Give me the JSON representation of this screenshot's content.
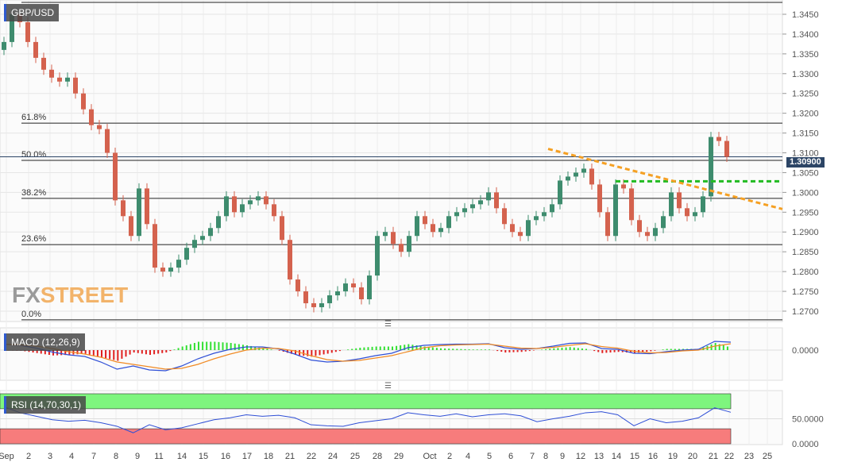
{
  "symbol": "GBP/USD",
  "current_price_label": "1.30900",
  "logo": {
    "fx": "FX",
    "street": "STREET"
  },
  "colors": {
    "up": "#3e8c6e",
    "down": "#d4624e",
    "macd": "#2f4fd6",
    "signal": "#f08a24",
    "hist_up": "#33e033",
    "hist_down": "#e02020",
    "rsi": "#2f4fd6",
    "overbought": "#7ef57e",
    "oversold": "#f77c7c",
    "trendline": "#f5a023",
    "resistance": "#22bb22",
    "price_tag": "#2c4566"
  },
  "chart_data": [
    {
      "type": "candlestick",
      "title": "GBP/USD",
      "ylim": [
        1.2665,
        1.3485
      ],
      "y_ticks": [
        "1.3450",
        "1.3400",
        "1.3350",
        "1.3300",
        "1.3250",
        "1.3200",
        "1.3150",
        "1.3100",
        "1.3050",
        "1.3000",
        "1.2950",
        "1.2900",
        "1.2850",
        "1.2800",
        "1.2750",
        "1.2700"
      ],
      "x_ticks": [
        "Sep",
        "2",
        "3",
        "4",
        "7",
        "8",
        "9",
        "11",
        "14",
        "15",
        "16",
        "17",
        "18",
        "21",
        "22",
        "24",
        "25",
        "28",
        "29",
        "Oct",
        "2",
        "4",
        "5",
        "6",
        "7",
        "8",
        "9",
        "12",
        "13",
        "14",
        "15",
        "16",
        "19",
        "20",
        "21",
        "22",
        "23",
        "25"
      ],
      "closes": [
        1.338,
        1.345,
        1.343,
        1.338,
        1.334,
        1.331,
        1.329,
        1.328,
        1.329,
        1.325,
        1.321,
        1.317,
        1.316,
        1.31,
        1.298,
        1.294,
        1.289,
        1.301,
        1.292,
        1.281,
        1.28,
        1.281,
        1.283,
        1.286,
        1.288,
        1.289,
        1.291,
        1.294,
        1.299,
        1.295,
        1.297,
        1.298,
        1.299,
        1.297,
        1.294,
        1.288,
        1.278,
        1.275,
        1.272,
        1.271,
        1.272,
        1.274,
        1.275,
        1.277,
        1.276,
        1.273,
        1.279,
        1.289,
        1.29,
        1.287,
        1.285,
        1.289,
        1.294,
        1.292,
        1.29,
        1.291,
        1.294,
        1.295,
        1.296,
        1.297,
        1.298,
        1.3,
        1.296,
        1.292,
        1.29,
        1.289,
        1.293,
        1.294,
        1.295,
        1.297,
        1.303,
        1.304,
        1.305,
        1.306,
        1.302,
        1.295,
        1.289,
        1.302,
        1.301,
        1.293,
        1.29,
        1.289,
        1.291,
        1.294,
        1.3,
        1.296,
        1.294,
        1.295,
        1.299,
        1.314,
        1.313,
        1.309
      ],
      "current_price": 1.309,
      "fibonacci": [
        {
          "label": "61.8%",
          "price": 1.3175
        },
        {
          "label": "50.0%",
          "price": 1.3081
        },
        {
          "label": "38.2%",
          "price": 1.2985
        },
        {
          "label": "23.6%",
          "price": 1.2868
        },
        {
          "label": "0.0%",
          "price": 1.2678
        }
      ],
      "fib_top_price": 1.348,
      "resistance_line": {
        "price": 1.3028,
        "style": "dashed"
      },
      "trendline": {
        "start_price": 1.311,
        "end_price": 1.2958,
        "style": "dashed"
      }
    },
    {
      "type": "line",
      "title": "MACD (12,26,9)",
      "y_ticks": [
        "0.0000"
      ],
      "series": [
        {
          "name": "MACD",
          "values": [
            0.0015,
            0.0012,
            0.0005,
            -0.0005,
            -0.0012,
            -0.0016,
            -0.003,
            -0.0048,
            -0.004,
            -0.005,
            -0.0052,
            -0.004,
            -0.0022,
            -0.0008,
            0.0002,
            0.0008,
            0.0008,
            0.0003,
            -0.001,
            -0.0025,
            -0.003,
            -0.0028,
            -0.0022,
            -0.0014,
            -0.0008,
            0.0006,
            0.0012,
            0.0014,
            0.0015,
            0.0015,
            0.0016,
            0.0006,
            0.0002,
            0.0004,
            0.001,
            0.0017,
            0.0018,
            0.0004,
            0.0002,
            -0.0008,
            -0.0009,
            -0.0004,
            0.0,
            0.0002,
            0.0022,
            0.002
          ]
        },
        {
          "name": "Signal",
          "values": [
            0.0015,
            0.0013,
            0.001,
            0.0004,
            -0.0004,
            -0.001,
            -0.0018,
            -0.003,
            -0.0036,
            -0.0042,
            -0.0048,
            -0.0046,
            -0.0036,
            -0.0022,
            -0.001,
            0.0,
            0.0005,
            0.0004,
            -0.0002,
            -0.0014,
            -0.0024,
            -0.0028,
            -0.0026,
            -0.002,
            -0.0014,
            -0.0004,
            0.0006,
            0.0011,
            0.0013,
            0.0014,
            0.0015,
            0.001,
            0.0005,
            0.0004,
            0.0007,
            0.0012,
            0.0016,
            0.0009,
            0.0005,
            -0.0003,
            -0.0007,
            -0.0006,
            -0.0002,
            0.0,
            0.001,
            0.0016
          ]
        }
      ]
    },
    {
      "type": "line",
      "title": "RSI (14,70,30,1)",
      "ylim": [
        0,
        100
      ],
      "y_ticks": [
        "50.0000",
        "0.0000"
      ],
      "levels": [
        70,
        30
      ],
      "values": [
        74,
        62,
        55,
        48,
        45,
        47,
        42,
        35,
        22,
        38,
        28,
        32,
        40,
        48,
        52,
        58,
        55,
        57,
        52,
        38,
        36,
        35,
        42,
        46,
        50,
        62,
        58,
        55,
        60,
        54,
        58,
        60,
        56,
        44,
        50,
        55,
        62,
        64,
        58,
        36,
        50,
        42,
        45,
        52,
        72,
        63
      ]
    }
  ]
}
